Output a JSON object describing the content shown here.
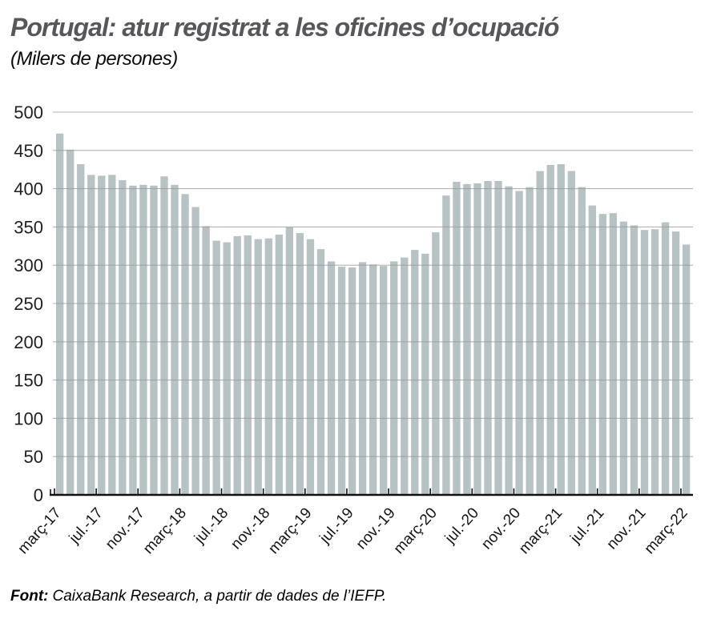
{
  "header": {
    "title": "Portugal: atur registrat a les oficines d’ocupació",
    "subtitle": "(Milers de persones)"
  },
  "footer": {
    "label": "Font:",
    "text": "CaixaBank Research, a partir de dades de l’IEFP."
  },
  "chart_data": {
    "type": "bar",
    "title": "Portugal: atur registrat a les oficines d’ocupació",
    "subtitle": "(Milers de persones)",
    "unit": "Milers de persones",
    "frequency": "monthly",
    "x_start": "març-17",
    "x_end": "març-22",
    "ylim": [
      0,
      500
    ],
    "yticks": [
      0,
      50,
      100,
      150,
      200,
      250,
      300,
      350,
      400,
      450,
      500
    ],
    "grid": "horizontal",
    "legend": "none",
    "xtick_labels": [
      "març-17",
      "jul.-17",
      "nov.-17",
      "març-18",
      "jul.-18",
      "nov.-18",
      "març-19",
      "jul.-19",
      "nov.-19",
      "març-20",
      "jul.-20",
      "nov.-20",
      "març-21",
      "jul.-21",
      "nov.-21",
      "març-22"
    ],
    "xtick_positions": [
      0,
      4,
      8,
      12,
      16,
      20,
      24,
      28,
      32,
      36,
      40,
      44,
      48,
      52,
      56,
      60
    ],
    "values": [
      472,
      451,
      432,
      418,
      417,
      418,
      411,
      404,
      405,
      404,
      416,
      405,
      393,
      376,
      351,
      332,
      330,
      338,
      339,
      334,
      335,
      340,
      350,
      342,
      334,
      321,
      305,
      298,
      297,
      304,
      301,
      299,
      305,
      310,
      320,
      315,
      343,
      391,
      409,
      406,
      407,
      410,
      410,
      403,
      397,
      402,
      423,
      431,
      432,
      423,
      402,
      378,
      367,
      368,
      357,
      352,
      346,
      347,
      356,
      344,
      327
    ],
    "bar_color": "#b6c2c4",
    "gridline_color": "#9a9a9a",
    "axis_color": "#111111",
    "tick_color": "#111111"
  }
}
